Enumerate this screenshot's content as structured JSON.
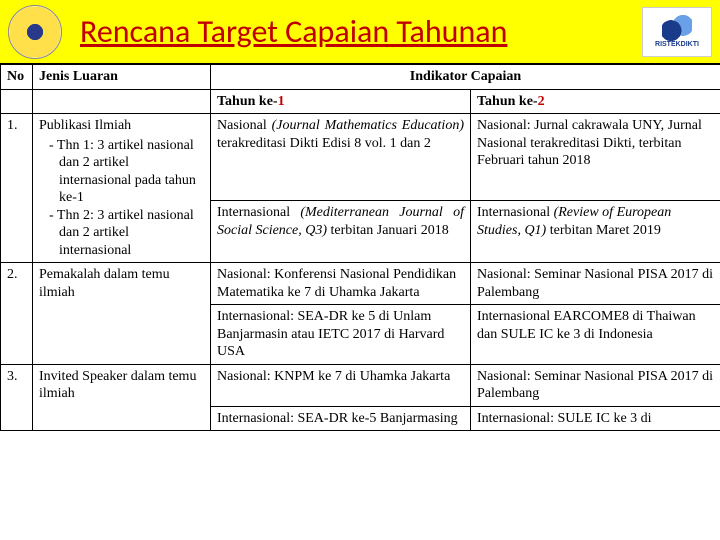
{
  "header": {
    "title": "Rencana Target Capaian Tahunan",
    "logo_right_text": "RISTEKDIKTI",
    "bg_color": "#ffff00",
    "title_color": "#c00000"
  },
  "table": {
    "headers": {
      "no": "No",
      "jenis": "Jenis Luaran",
      "indikator": "Indikator Capaian",
      "tahun1_prefix": "Tahun ke-",
      "tahun1_num": "1",
      "tahun2_prefix": "Tahun ke-",
      "tahun2_num": "2"
    },
    "rows": [
      {
        "no": "1.",
        "jenis_title": "Publikasi Ilmiah",
        "jenis_sub1": "- Thn 1: 3 artikel nasional dan 2 artikel internasional pada tahun ke-1",
        "jenis_sub2": "- Thn 2: 3 artikel nasional dan 2 artikel internasional",
        "t1a_pre": "Nasional ",
        "t1a_ital": "(Journal Mathematics Education)",
        "t1a_post": " terakreditasi Dikti Edisi 8 vol. 1 dan 2",
        "t1b_pre": "Internasional ",
        "t1b_ital": "(Mediterranean Journal of Social Science, Q3)",
        "t1b_post": " terbitan Januari 2018",
        "t2a": "Nasional: Jurnal cakrawala UNY, Jurnal Nasional terakreditasi Dikti, terbitan Februari tahun 2018",
        "t2b_pre": "Internasional ",
        "t2b_ital": "(Review of European Studies, Q1)",
        "t2b_post": " terbitan Maret 2019"
      },
      {
        "no": "2.",
        "jenis": "Pemakalah dalam temu ilmiah",
        "t1a": "Nasional: Konferensi Nasional Pendidikan Matematika ke 7 di Uhamka Jakarta",
        "t1b": "Internasional: SEA-DR ke 5 di Unlam Banjarmasin atau IETC 2017 di Harvard USA",
        "t2a": "Nasional: Seminar Nasional PISA 2017 di Palembang",
        "t2b": "Internasional EARCOME8 di Thaiwan dan SULE IC ke 3 di Indonesia"
      },
      {
        "no": "3.",
        "jenis": "Invited Speaker dalam temu ilmiah",
        "t1a": "Nasional: KNPM ke 7 di Uhamka Jakarta",
        "t1b": "Internasional: SEA-DR ke-5 Banjarmasing",
        "t2a": "Nasional: Seminar Nasional PISA 2017 di Palembang",
        "t2b": "Internasional: SULE IC ke 3 di"
      }
    ]
  }
}
